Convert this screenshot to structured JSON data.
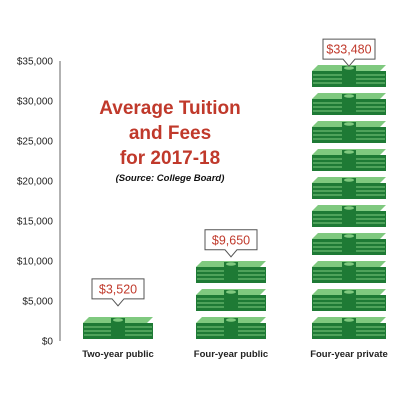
{
  "chart_data": {
    "type": "bar",
    "title_lines": [
      "Average Tuition",
      "and Fees",
      "for 2017-18"
    ],
    "subtitle": "(Source: College Board)",
    "categories": [
      "Two-year public",
      "Four-year public",
      "Four-year private"
    ],
    "values": [
      3520,
      9650,
      33480
    ],
    "data_labels": [
      "$3,520",
      "$9,650",
      "$33,480"
    ],
    "ylim": [
      0,
      35000
    ],
    "yticks": [
      0,
      5000,
      10000,
      15000,
      20000,
      25000,
      30000,
      35000
    ],
    "ytick_labels": [
      "$0",
      "$5,000",
      "$10,000",
      "$15,000",
      "$20,000",
      "$25,000",
      "$30,000",
      "$35,000"
    ],
    "xlabel": "",
    "ylabel": "",
    "grid": false,
    "mark": "stacks of green dollar bills",
    "colors": {
      "title": "#c0392b",
      "label": "#c0392b",
      "money_dark": "#1e7a35",
      "money_light": "#7fc97f",
      "axis": "#666666"
    }
  }
}
